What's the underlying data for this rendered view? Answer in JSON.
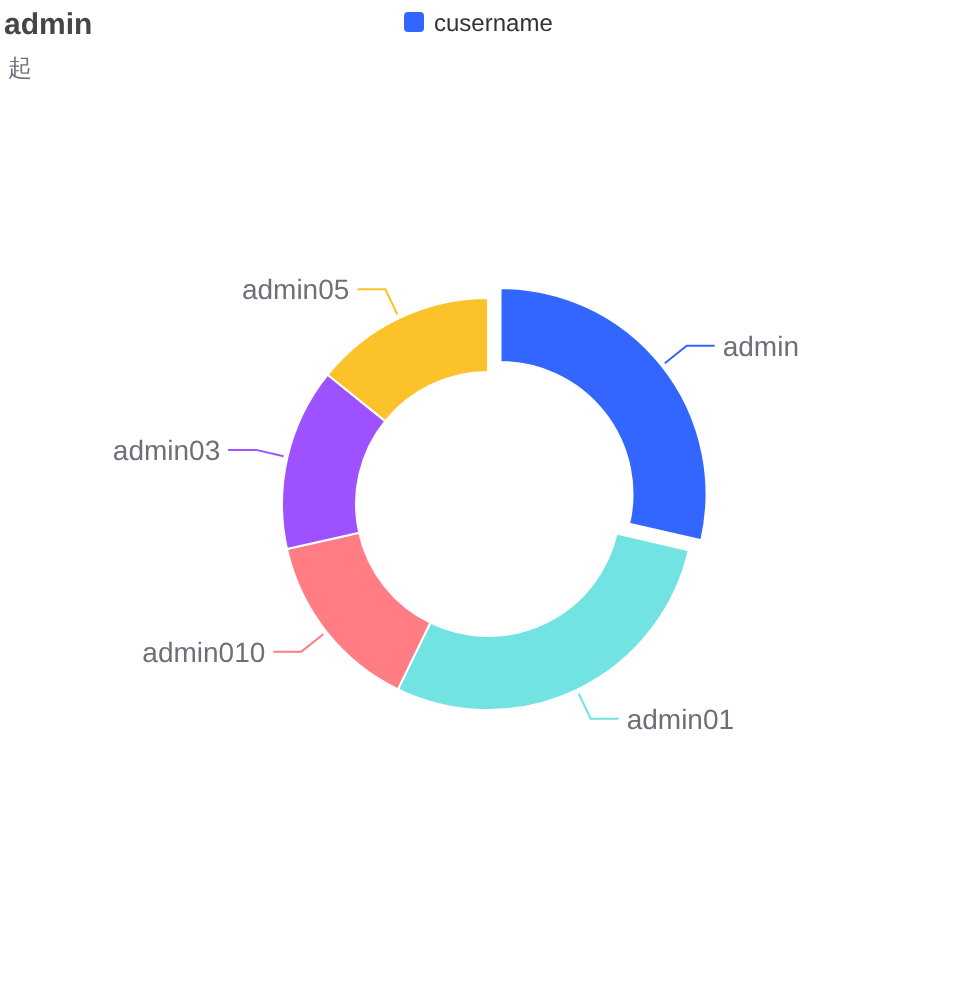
{
  "chart_data": {
    "type": "donut",
    "title": "admin",
    "subtitle": "起",
    "categories": [
      "admin",
      "admin01",
      "admin010",
      "admin03",
      "admin05"
    ],
    "series": [
      {
        "name": "cusername",
        "values": [
          28.6,
          28.6,
          14.3,
          14.3,
          14.2
        ]
      }
    ],
    "colors": [
      "#3366ff",
      "#72e3e3",
      "#ff7d83",
      "#9e52ff",
      "#fbc22a"
    ],
    "legend": "top"
  }
}
